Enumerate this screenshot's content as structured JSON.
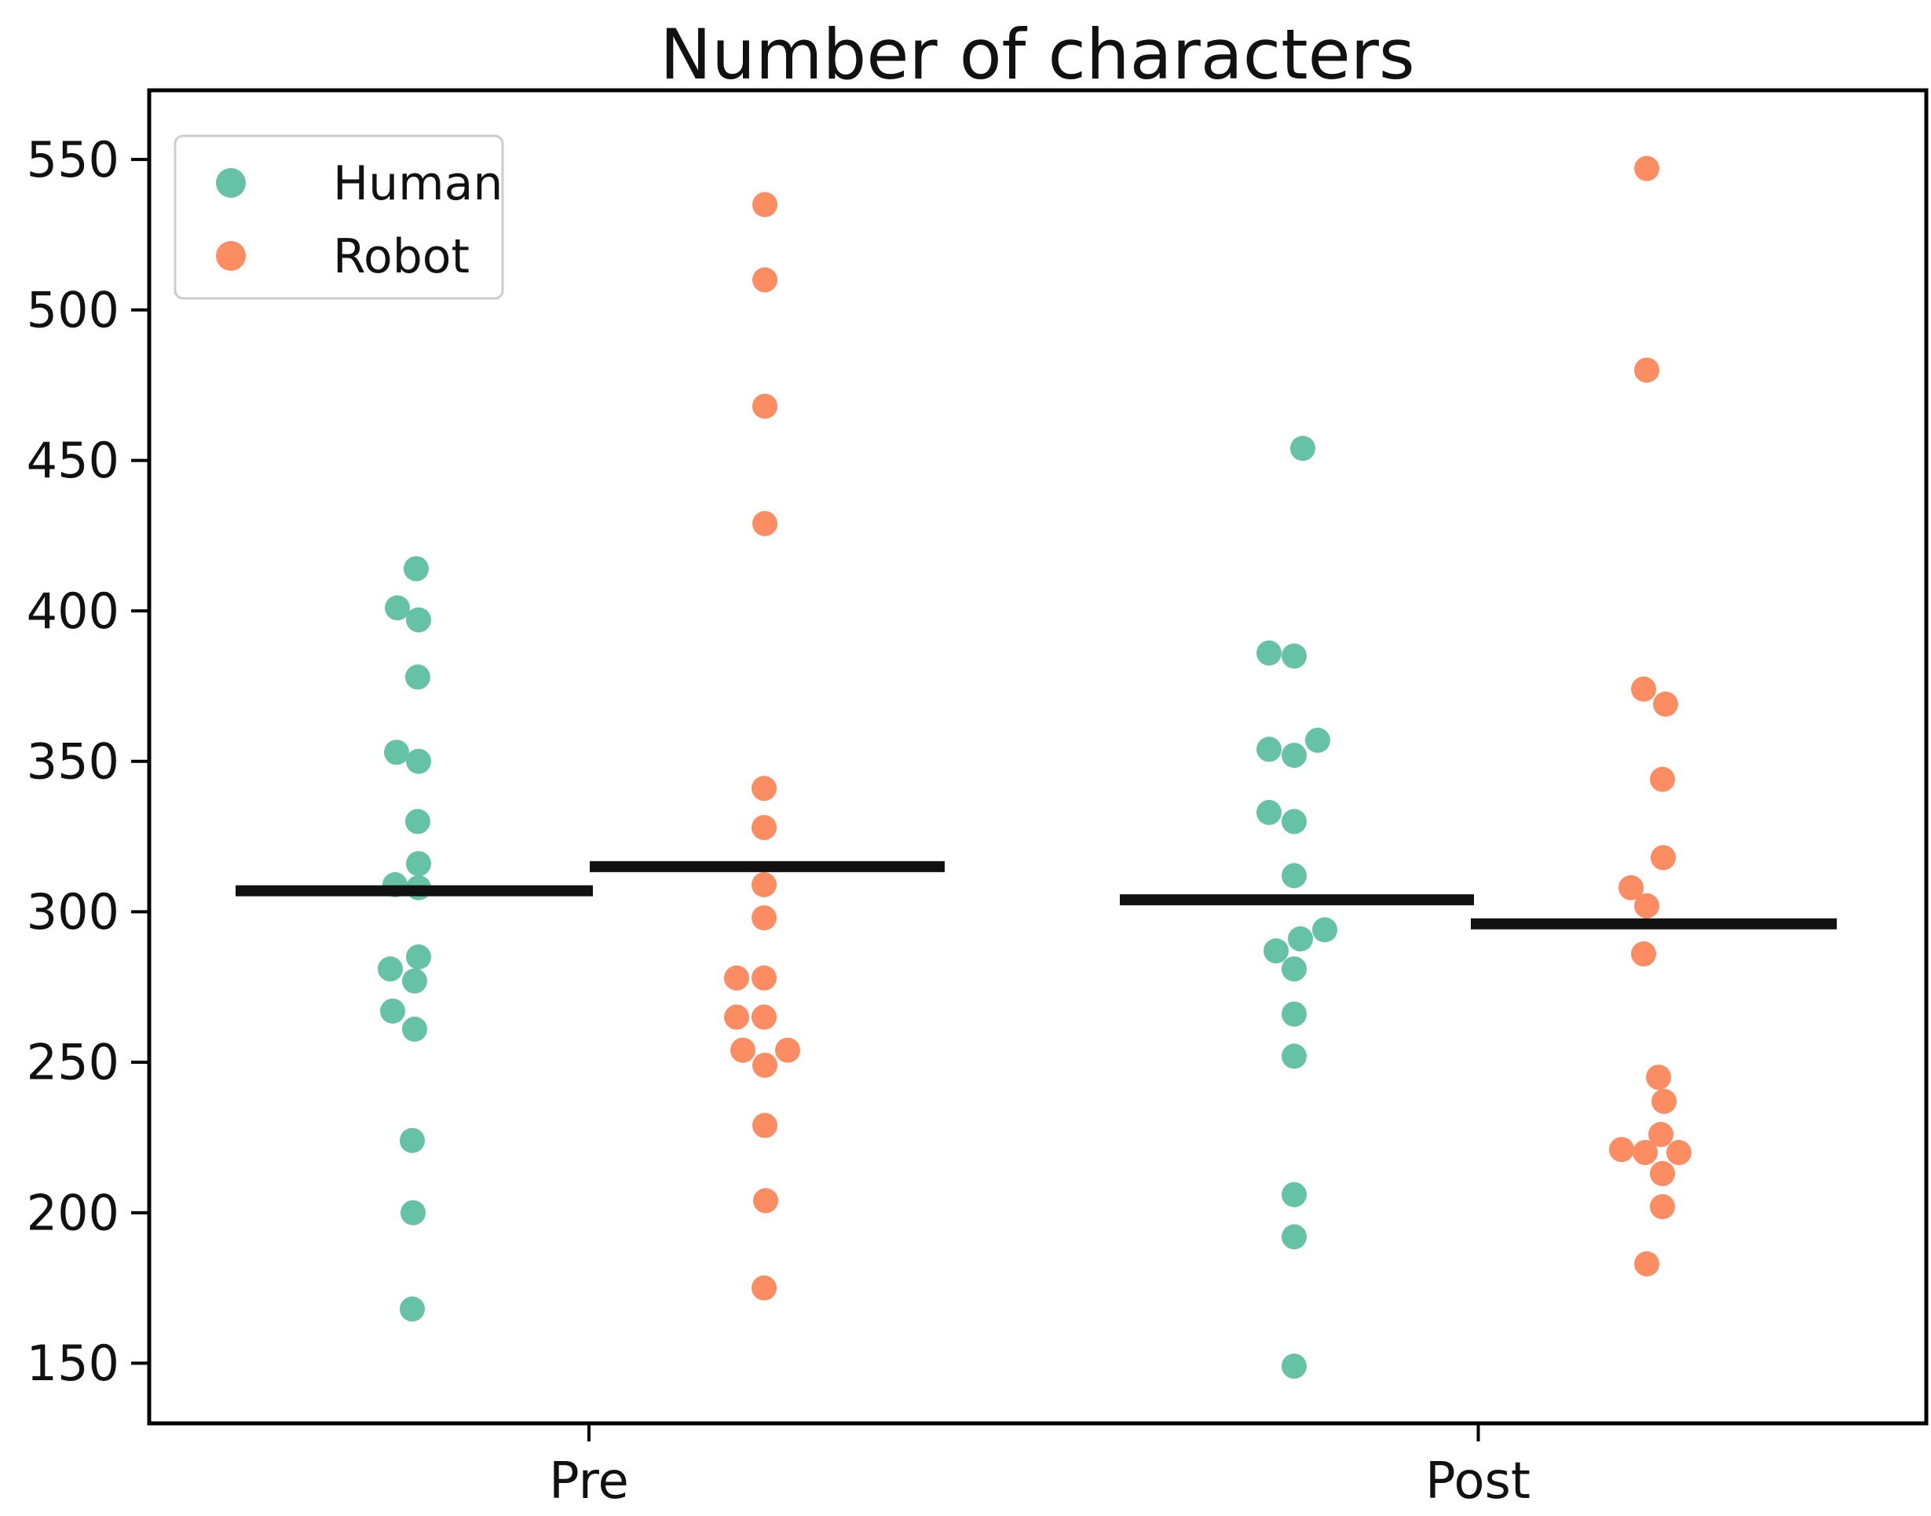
{
  "figure": {
    "title": "Number of characters"
  },
  "chart_data": {
    "type": "scatter",
    "subtype": "strip-plot-with-mean-lines",
    "title": "Number of characters",
    "xlabel": "",
    "ylabel": "",
    "categories": [
      "Pre",
      "Post"
    ],
    "ylim": [
      130,
      573
    ],
    "yticks": [
      150,
      200,
      250,
      300,
      350,
      400,
      450,
      500,
      550
    ],
    "grid": false,
    "legend": {
      "position": "upper left",
      "entries": [
        {
          "label": "Human",
          "color": "#66c2a5"
        },
        {
          "label": "Robot",
          "color": "#fc8d62"
        }
      ]
    },
    "colors": {
      "human": "#66c2a5",
      "robot": "#fc8d62",
      "mean_line": "#111111",
      "axis": "#000000",
      "legend_border": "#cccccc"
    },
    "mean_marker": "horizontal black line at group mean",
    "series": [
      {
        "name": "Human",
        "group": "Pre",
        "color": "#66c2a5",
        "mean": 307,
        "values": [
          414,
          401,
          397,
          378,
          353,
          350,
          330,
          316,
          309,
          308,
          285,
          281,
          277,
          267,
          261,
          224,
          200,
          168
        ],
        "jitter_dx": [
          5,
          -19,
          8,
          7,
          -20,
          8,
          7,
          8,
          -22,
          8,
          8,
          -28,
          3,
          -25,
          3,
          0,
          1,
          0
        ]
      },
      {
        "name": "Robot",
        "group": "Pre",
        "color": "#fc8d62",
        "mean": 315,
        "values": [
          535,
          510,
          468,
          429,
          341,
          328,
          309,
          298,
          278,
          278,
          265,
          265,
          254,
          254,
          249,
          229,
          204,
          175
        ],
        "jitter_dx": [
          -1,
          -1,
          -1,
          -1,
          -2,
          -2,
          -2,
          -2,
          -37,
          -2,
          -37,
          -2,
          -29,
          28,
          -1,
          -1,
          0,
          -2
        ]
      },
      {
        "name": "Human",
        "group": "Post",
        "color": "#66c2a5",
        "mean": 304,
        "values": [
          454,
          386,
          385,
          357,
          354,
          352,
          333,
          330,
          312,
          294,
          291,
          287,
          281,
          266,
          252,
          206,
          192,
          149
        ],
        "jitter_dx": [
          9,
          -34,
          -2,
          28,
          -34,
          -2,
          -34,
          -2,
          -2,
          37,
          6,
          -25,
          -2,
          -2,
          -2,
          -2,
          -2,
          -2
        ]
      },
      {
        "name": "Robot",
        "group": "Post",
        "color": "#fc8d62",
        "mean": 296,
        "values": [
          547,
          480,
          374,
          369,
          344,
          318,
          308,
          302,
          286,
          245,
          237,
          226,
          221,
          220,
          220,
          213,
          202,
          183
        ],
        "jitter_dx": [
          -18,
          -18,
          -22,
          6,
          2,
          3,
          -38,
          -18,
          -22,
          -3,
          4,
          0,
          -50,
          -20,
          23,
          2,
          2,
          -18
        ]
      }
    ]
  }
}
